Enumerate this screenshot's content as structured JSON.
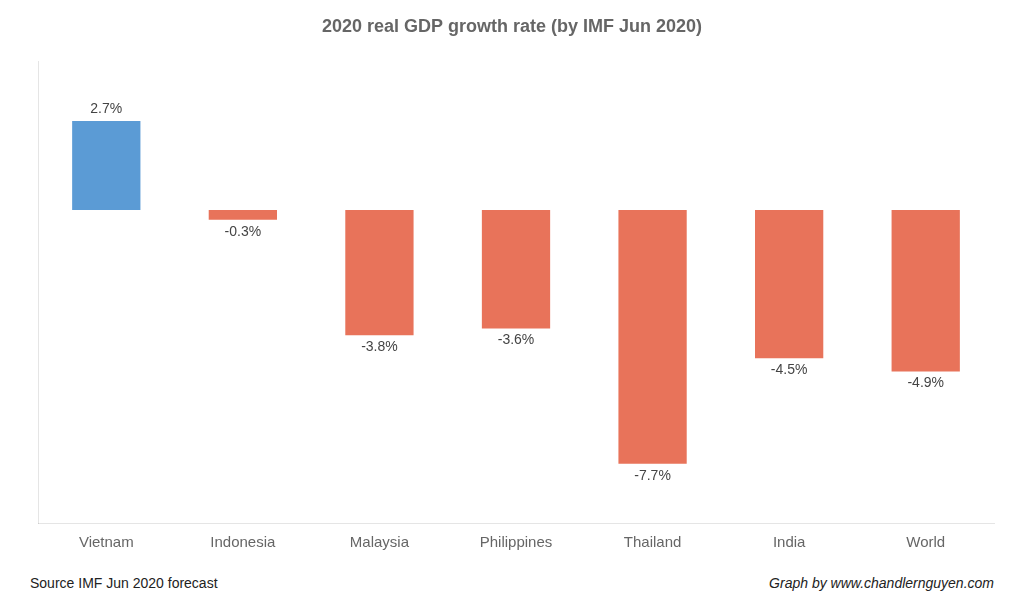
{
  "chart_data": {
    "type": "bar",
    "title": "2020 real GDP growth rate (by IMF Jun 2020)",
    "categories": [
      "Vietnam",
      "Indonesia",
      "Malaysia",
      "Philippines",
      "Thailand",
      "India",
      "World"
    ],
    "values": [
      2.7,
      -0.3,
      -3.8,
      -3.6,
      -7.7,
      -4.5,
      -4.9
    ],
    "value_labels": [
      "2.7%",
      "-0.3%",
      "-3.8%",
      "-3.6%",
      "-7.7%",
      "-4.5%",
      "-4.9%"
    ],
    "data_labels": true,
    "colors": [
      "#5B9BD5",
      "#E8735A",
      "#E8735A",
      "#E8735A",
      "#E8735A",
      "#E8735A",
      "#E8735A"
    ],
    "ylim": [
      -9.5,
      4.5
    ],
    "tick_labels": "x",
    "grid": false,
    "annotations": [
      "Source IMF Jun 2020 forecast",
      "Graph by www.chandlernguyen.com"
    ]
  }
}
